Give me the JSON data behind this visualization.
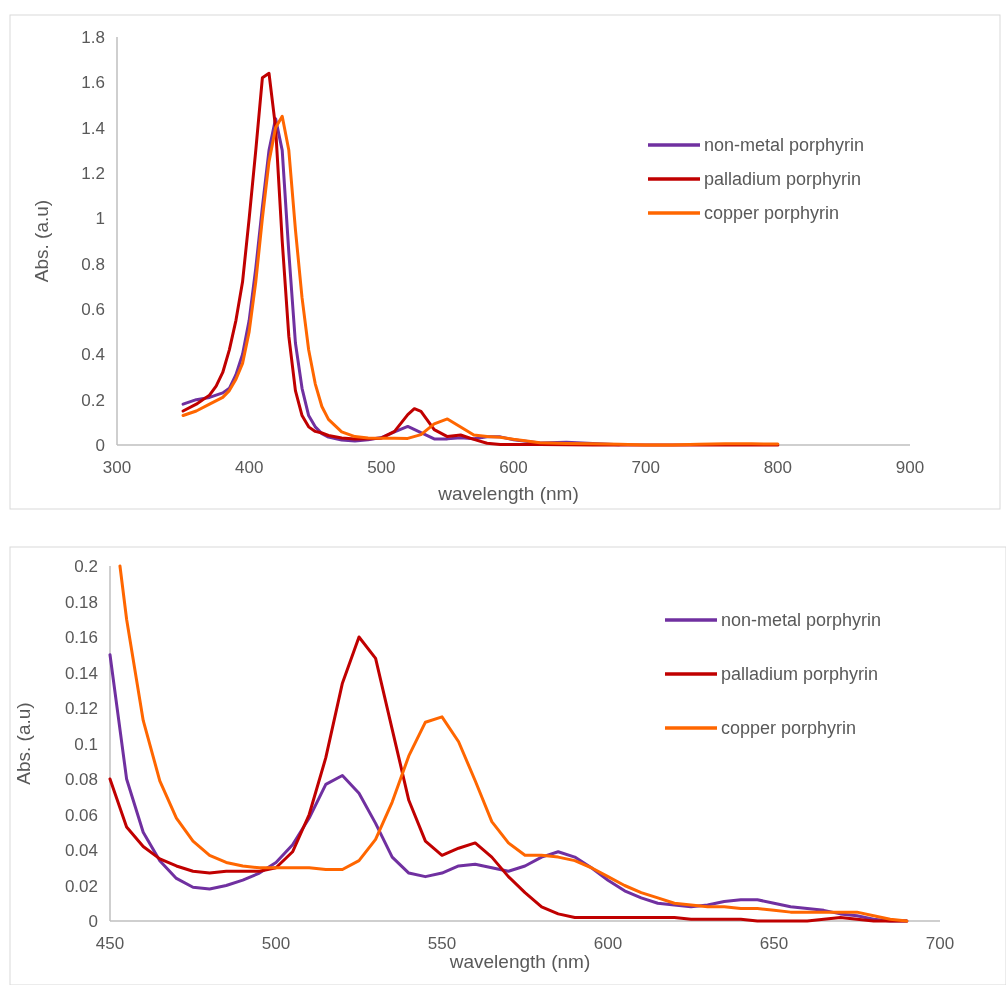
{
  "chart_data": [
    {
      "type": "line",
      "xlabel": "wavelength (nm)",
      "ylabel": "Abs. (a.u)",
      "xlim": [
        300,
        900
      ],
      "xticks": [
        300,
        400,
        500,
        600,
        700,
        800,
        900
      ],
      "ylim": [
        0,
        1.8
      ],
      "yticks": [
        0,
        0.2,
        0.4,
        0.6,
        0.8,
        1,
        1.2,
        1.4,
        1.6,
        1.8
      ],
      "grid": false,
      "legend": "right",
      "marker": "none",
      "line_style": "solid",
      "series": [
        {
          "name": "non-metal porphyrin",
          "color": "#7030a0",
          "x": [
            350,
            360,
            370,
            380,
            385,
            390,
            395,
            400,
            405,
            410,
            415,
            420,
            425,
            430,
            435,
            440,
            445,
            450,
            455,
            460,
            470,
            480,
            490,
            500,
            510,
            520,
            530,
            540,
            550,
            560,
            570,
            580,
            590,
            600,
            620,
            640,
            660,
            680
          ],
          "values": [
            0.18,
            0.2,
            0.21,
            0.23,
            0.25,
            0.31,
            0.4,
            0.55,
            0.78,
            1.05,
            1.3,
            1.44,
            1.3,
            0.85,
            0.45,
            0.25,
            0.13,
            0.08,
            0.05,
            0.035,
            0.022,
            0.018,
            0.023,
            0.033,
            0.058,
            0.082,
            0.055,
            0.027,
            0.027,
            0.032,
            0.028,
            0.036,
            0.036,
            0.023,
            0.009,
            0.012,
            0.007,
            0.001
          ]
        },
        {
          "name": "palladium porphyrin",
          "color": "#c00000",
          "x": [
            350,
            360,
            370,
            375,
            380,
            385,
            390,
            395,
            400,
            405,
            410,
            415,
            420,
            425,
            430,
            435,
            440,
            445,
            450,
            455,
            460,
            470,
            480,
            490,
            500,
            510,
            520,
            525,
            530,
            540,
            550,
            560,
            570,
            580,
            590,
            600,
            620,
            640,
            660,
            680,
            700,
            720,
            740,
            760,
            780,
            800
          ],
          "values": [
            0.15,
            0.18,
            0.22,
            0.26,
            0.32,
            0.42,
            0.55,
            0.72,
            1,
            1.3,
            1.62,
            1.64,
            1.4,
            0.9,
            0.48,
            0.24,
            0.13,
            0.08,
            0.06,
            0.053,
            0.042,
            0.031,
            0.027,
            0.028,
            0.03,
            0.06,
            0.134,
            0.16,
            0.148,
            0.068,
            0.037,
            0.044,
            0.025,
            0.008,
            0.002,
            0.002,
            0.002,
            0.001,
            0,
            0,
            0,
            0,
            0,
            0,
            0,
            0
          ]
        },
        {
          "name": "copper porphyrin",
          "color": "#ff6600",
          "x": [
            350,
            360,
            370,
            380,
            385,
            390,
            395,
            400,
            405,
            410,
            415,
            420,
            425,
            430,
            435,
            440,
            445,
            450,
            455,
            460,
            470,
            480,
            490,
            500,
            510,
            520,
            530,
            540,
            550,
            560,
            570,
            580,
            590,
            600,
            620,
            640,
            660,
            680,
            700,
            720,
            740,
            760,
            780,
            800
          ],
          "values": [
            0.13,
            0.15,
            0.18,
            0.21,
            0.24,
            0.29,
            0.36,
            0.5,
            0.72,
            1,
            1.25,
            1.4,
            1.45,
            1.3,
            0.95,
            0.65,
            0.42,
            0.27,
            0.17,
            0.113,
            0.058,
            0.037,
            0.031,
            0.03,
            0.03,
            0.029,
            0.046,
            0.093,
            0.115,
            0.079,
            0.044,
            0.037,
            0.034,
            0.025,
            0.01,
            0.007,
            0.005,
            0.003,
            0,
            0,
            0.003,
            0.006,
            0.005,
            0.004
          ]
        }
      ]
    },
    {
      "type": "line",
      "xlabel": "wavelength (nm)",
      "ylabel": "Abs. (a.u)",
      "xlim": [
        450,
        700
      ],
      "xticks": [
        450,
        500,
        550,
        600,
        650,
        700
      ],
      "ylim": [
        0,
        0.2
      ],
      "yticks": [
        0,
        0.02,
        0.04,
        0.06,
        0.08,
        0.1,
        0.12,
        0.14,
        0.16,
        0.18,
        0.2
      ],
      "grid": false,
      "legend": "right",
      "marker": "none",
      "line_style": "solid",
      "series": [
        {
          "name": "non-metal porphyrin",
          "color": "#7030a0",
          "x": [
            450,
            455,
            460,
            465,
            470,
            475,
            480,
            485,
            490,
            495,
            500,
            505,
            510,
            515,
            520,
            525,
            530,
            535,
            540,
            545,
            550,
            555,
            560,
            565,
            570,
            575,
            580,
            585,
            590,
            595,
            600,
            605,
            610,
            615,
            620,
            625,
            630,
            635,
            640,
            645,
            650,
            655,
            660,
            665,
            670,
            675,
            680,
            685,
            690
          ],
          "values": [
            0.15,
            0.08,
            0.05,
            0.034,
            0.024,
            0.019,
            0.018,
            0.02,
            0.023,
            0.027,
            0.033,
            0.043,
            0.058,
            0.077,
            0.082,
            0.072,
            0.055,
            0.036,
            0.027,
            0.025,
            0.027,
            0.031,
            0.032,
            0.03,
            0.028,
            0.031,
            0.036,
            0.039,
            0.036,
            0.03,
            0.023,
            0.017,
            0.013,
            0.01,
            0.009,
            0.008,
            0.009,
            0.011,
            0.012,
            0.012,
            0.01,
            0.008,
            0.007,
            0.006,
            0.004,
            0.003,
            0.001,
            0,
            0
          ]
        },
        {
          "name": "palladium porphyrin",
          "color": "#c00000",
          "x": [
            450,
            455,
            460,
            465,
            470,
            475,
            480,
            485,
            490,
            495,
            500,
            505,
            510,
            515,
            520,
            525,
            530,
            535,
            540,
            545,
            550,
            555,
            560,
            565,
            570,
            575,
            580,
            585,
            590,
            595,
            600,
            605,
            610,
            615,
            620,
            625,
            630,
            635,
            640,
            645,
            650,
            655,
            660,
            665,
            670,
            675,
            680,
            685,
            690
          ],
          "values": [
            0.08,
            0.053,
            0.042,
            0.035,
            0.031,
            0.028,
            0.027,
            0.028,
            0.028,
            0.028,
            0.03,
            0.039,
            0.06,
            0.092,
            0.134,
            0.16,
            0.148,
            0.108,
            0.068,
            0.045,
            0.037,
            0.041,
            0.044,
            0.036,
            0.025,
            0.016,
            0.008,
            0.004,
            0.002,
            0.002,
            0.002,
            0.002,
            0.002,
            0.002,
            0.002,
            0.001,
            0.001,
            0.001,
            0.001,
            0,
            0,
            0,
            0,
            0.001,
            0.002,
            0.001,
            0,
            0,
            0
          ]
        },
        {
          "name": "copper porphyrin",
          "color": "#ff6600",
          "x": [
            453,
            455,
            460,
            465,
            470,
            475,
            480,
            485,
            490,
            495,
            500,
            505,
            510,
            515,
            520,
            525,
            530,
            535,
            540,
            545,
            550,
            555,
            560,
            565,
            570,
            575,
            580,
            585,
            590,
            595,
            600,
            605,
            610,
            615,
            620,
            625,
            630,
            635,
            640,
            645,
            650,
            655,
            660,
            665,
            670,
            675,
            680,
            685,
            690
          ],
          "values": [
            0.2,
            0.17,
            0.113,
            0.079,
            0.058,
            0.045,
            0.037,
            0.033,
            0.031,
            0.03,
            0.03,
            0.03,
            0.03,
            0.029,
            0.029,
            0.034,
            0.046,
            0.067,
            0.093,
            0.112,
            0.115,
            0.101,
            0.079,
            0.056,
            0.044,
            0.037,
            0.037,
            0.036,
            0.034,
            0.03,
            0.025,
            0.02,
            0.016,
            0.013,
            0.01,
            0.009,
            0.008,
            0.008,
            0.007,
            0.007,
            0.006,
            0.005,
            0.005,
            0.005,
            0.005,
            0.005,
            0.003,
            0.001,
            0
          ]
        }
      ]
    }
  ]
}
